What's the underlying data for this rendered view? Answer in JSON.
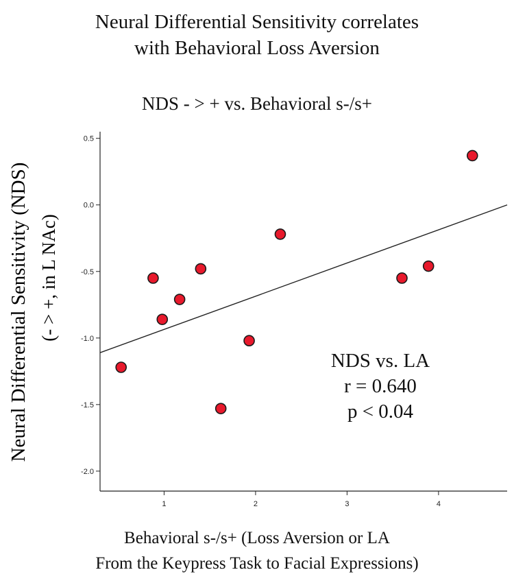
{
  "chart_data": {
    "type": "scatter",
    "title_line1": "Neural Differential Sensitivity correlates",
    "title_line2": "with Behavioral Loss Aversion",
    "subtitle": "NDS - > +  vs. Behavioral s-/s+",
    "ylabel_line1": "Neural Differential Sensitivity (NDS)",
    "ylabel_line2": "(- > +, in L NAc)",
    "xlabel_line1": "Behavioral s-/s+ (Loss Aversion or LA",
    "xlabel_line2": "From the Keypress Task to Facial Expressions)",
    "xlim": [
      0.3,
      4.75
    ],
    "ylim": [
      -2.15,
      0.55
    ],
    "xticks": [
      1,
      2,
      3,
      4
    ],
    "xtick_labels": [
      "1",
      "2",
      "3",
      "4"
    ],
    "yticks": [
      0.5,
      0.0,
      -0.5,
      -1.0,
      -1.5,
      -2.0
    ],
    "ytick_labels": [
      "0.5",
      "0.0",
      "-0.5",
      "-1.0",
      "-1.5",
      "-2.0"
    ],
    "points": [
      {
        "x": 0.53,
        "y": -1.22
      },
      {
        "x": 0.88,
        "y": -0.55
      },
      {
        "x": 0.98,
        "y": -0.86
      },
      {
        "x": 1.17,
        "y": -0.71
      },
      {
        "x": 1.4,
        "y": -0.48
      },
      {
        "x": 1.62,
        "y": -1.53
      },
      {
        "x": 1.93,
        "y": -1.02
      },
      {
        "x": 2.27,
        "y": -0.22
      },
      {
        "x": 3.6,
        "y": -0.55
      },
      {
        "x": 3.89,
        "y": -0.46
      },
      {
        "x": 4.37,
        "y": 0.37
      }
    ],
    "fit_line": {
      "x": [
        0.3,
        4.75
      ],
      "y": [
        -1.11,
        0.0
      ]
    },
    "annotation": [
      "NDS vs. LA",
      "r = 0.640",
      "p < 0.04"
    ],
    "point_color": "#e8192c"
  }
}
